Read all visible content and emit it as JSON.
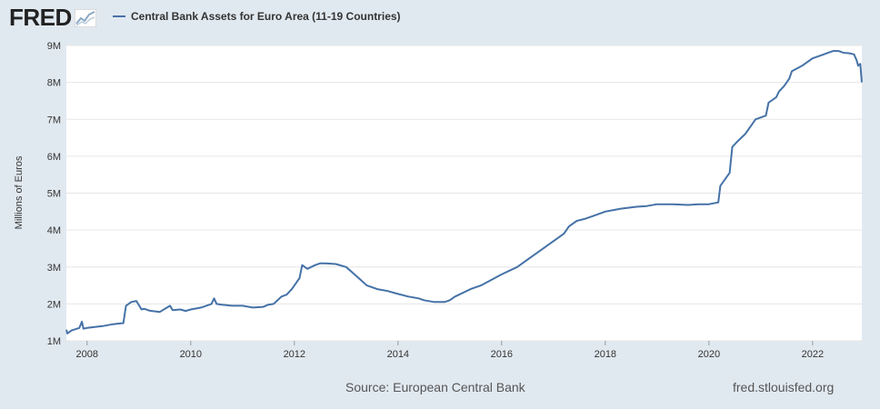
{
  "header": {
    "logo_text": "FRED",
    "series_title": "Central Bank Assets for Euro Area (11-19 Countries)"
  },
  "footer": {
    "source": "Source: European Central Bank",
    "site": "fred.stlouisfed.org"
  },
  "colors": {
    "line": "#4572a7",
    "background": "#e1e9f0",
    "plot_background": "#ffffff",
    "grid": "#e6e6e6"
  },
  "chart_data": {
    "type": "line",
    "title": "Central Bank Assets for Euro Area (11-19 Countries)",
    "xlabel": "",
    "ylabel": "Millions of Euros",
    "xlim": [
      2007.6,
      2022.95
    ],
    "ylim": [
      1000000,
      9000000
    ],
    "grid": true,
    "legend": "top-left",
    "y_ticks": [
      {
        "value": 1000000,
        "label": "1M"
      },
      {
        "value": 2000000,
        "label": "2M"
      },
      {
        "value": 3000000,
        "label": "3M"
      },
      {
        "value": 4000000,
        "label": "4M"
      },
      {
        "value": 5000000,
        "label": "5M"
      },
      {
        "value": 6000000,
        "label": "6M"
      },
      {
        "value": 7000000,
        "label": "7M"
      },
      {
        "value": 8000000,
        "label": "8M"
      },
      {
        "value": 9000000,
        "label": "9M"
      }
    ],
    "x_ticks": [
      {
        "value": 2008,
        "label": "2008"
      },
      {
        "value": 2010,
        "label": "2010"
      },
      {
        "value": 2012,
        "label": "2012"
      },
      {
        "value": 2014,
        "label": "2014"
      },
      {
        "value": 2016,
        "label": "2016"
      },
      {
        "value": 2018,
        "label": "2018"
      },
      {
        "value": 2020,
        "label": "2020"
      },
      {
        "value": 2022,
        "label": "2022"
      }
    ],
    "series": [
      {
        "name": "Central Bank Assets for Euro Area (11-19 Countries)",
        "x": [
          2007.6,
          2007.62,
          2007.7,
          2007.85,
          2007.9,
          2007.93,
          2008.0,
          2008.3,
          2008.5,
          2008.7,
          2008.75,
          2008.8,
          2008.85,
          2008.95,
          2009.05,
          2009.1,
          2009.2,
          2009.4,
          2009.6,
          2009.65,
          2009.8,
          2009.9,
          2010.0,
          2010.2,
          2010.4,
          2010.45,
          2010.5,
          2010.6,
          2010.8,
          2011.0,
          2011.2,
          2011.4,
          2011.5,
          2011.6,
          2011.75,
          2011.85,
          2011.95,
          2012.1,
          2012.15,
          2012.25,
          2012.4,
          2012.5,
          2012.6,
          2012.8,
          2013.0,
          2013.2,
          2013.4,
          2013.6,
          2013.8,
          2014.0,
          2014.2,
          2014.4,
          2014.5,
          2014.7,
          2014.9,
          2015.0,
          2015.1,
          2015.4,
          2015.6,
          2015.8,
          2016.0,
          2016.3,
          2016.6,
          2016.8,
          2017.0,
          2017.2,
          2017.3,
          2017.45,
          2017.6,
          2017.8,
          2018.0,
          2018.3,
          2018.6,
          2018.8,
          2019.0,
          2019.3,
          2019.6,
          2019.8,
          2020.0,
          2020.18,
          2020.22,
          2020.4,
          2020.45,
          2020.55,
          2020.7,
          2020.8,
          2020.9,
          2021.1,
          2021.15,
          2021.3,
          2021.35,
          2021.45,
          2021.55,
          2021.6,
          2021.8,
          2022.0,
          2022.2,
          2022.3,
          2022.4,
          2022.5,
          2022.6,
          2022.7,
          2022.8,
          2022.85,
          2022.88,
          2022.92,
          2022.95
        ],
        "values": [
          1300000,
          1200000,
          1280000,
          1350000,
          1520000,
          1330000,
          1350000,
          1400000,
          1450000,
          1480000,
          1950000,
          2000000,
          2050000,
          2080000,
          1850000,
          1870000,
          1820000,
          1780000,
          1950000,
          1830000,
          1850000,
          1810000,
          1850000,
          1900000,
          2000000,
          2150000,
          2000000,
          1980000,
          1950000,
          1950000,
          1900000,
          1920000,
          1980000,
          2000000,
          2200000,
          2250000,
          2400000,
          2700000,
          3050000,
          2950000,
          3050000,
          3100000,
          3100000,
          3080000,
          3000000,
          2750000,
          2500000,
          2400000,
          2350000,
          2270000,
          2200000,
          2150000,
          2100000,
          2050000,
          2050000,
          2100000,
          2200000,
          2400000,
          2500000,
          2650000,
          2800000,
          3000000,
          3300000,
          3500000,
          3700000,
          3900000,
          4100000,
          4250000,
          4300000,
          4400000,
          4500000,
          4580000,
          4630000,
          4650000,
          4700000,
          4700000,
          4680000,
          4700000,
          4700000,
          4750000,
          5200000,
          5550000,
          6250000,
          6400000,
          6600000,
          6800000,
          7000000,
          7100000,
          7450000,
          7600000,
          7750000,
          7900000,
          8100000,
          8300000,
          8450000,
          8650000,
          8750000,
          8800000,
          8850000,
          8850000,
          8800000,
          8790000,
          8760000,
          8600000,
          8450000,
          8500000,
          8000000
        ]
      }
    ]
  }
}
